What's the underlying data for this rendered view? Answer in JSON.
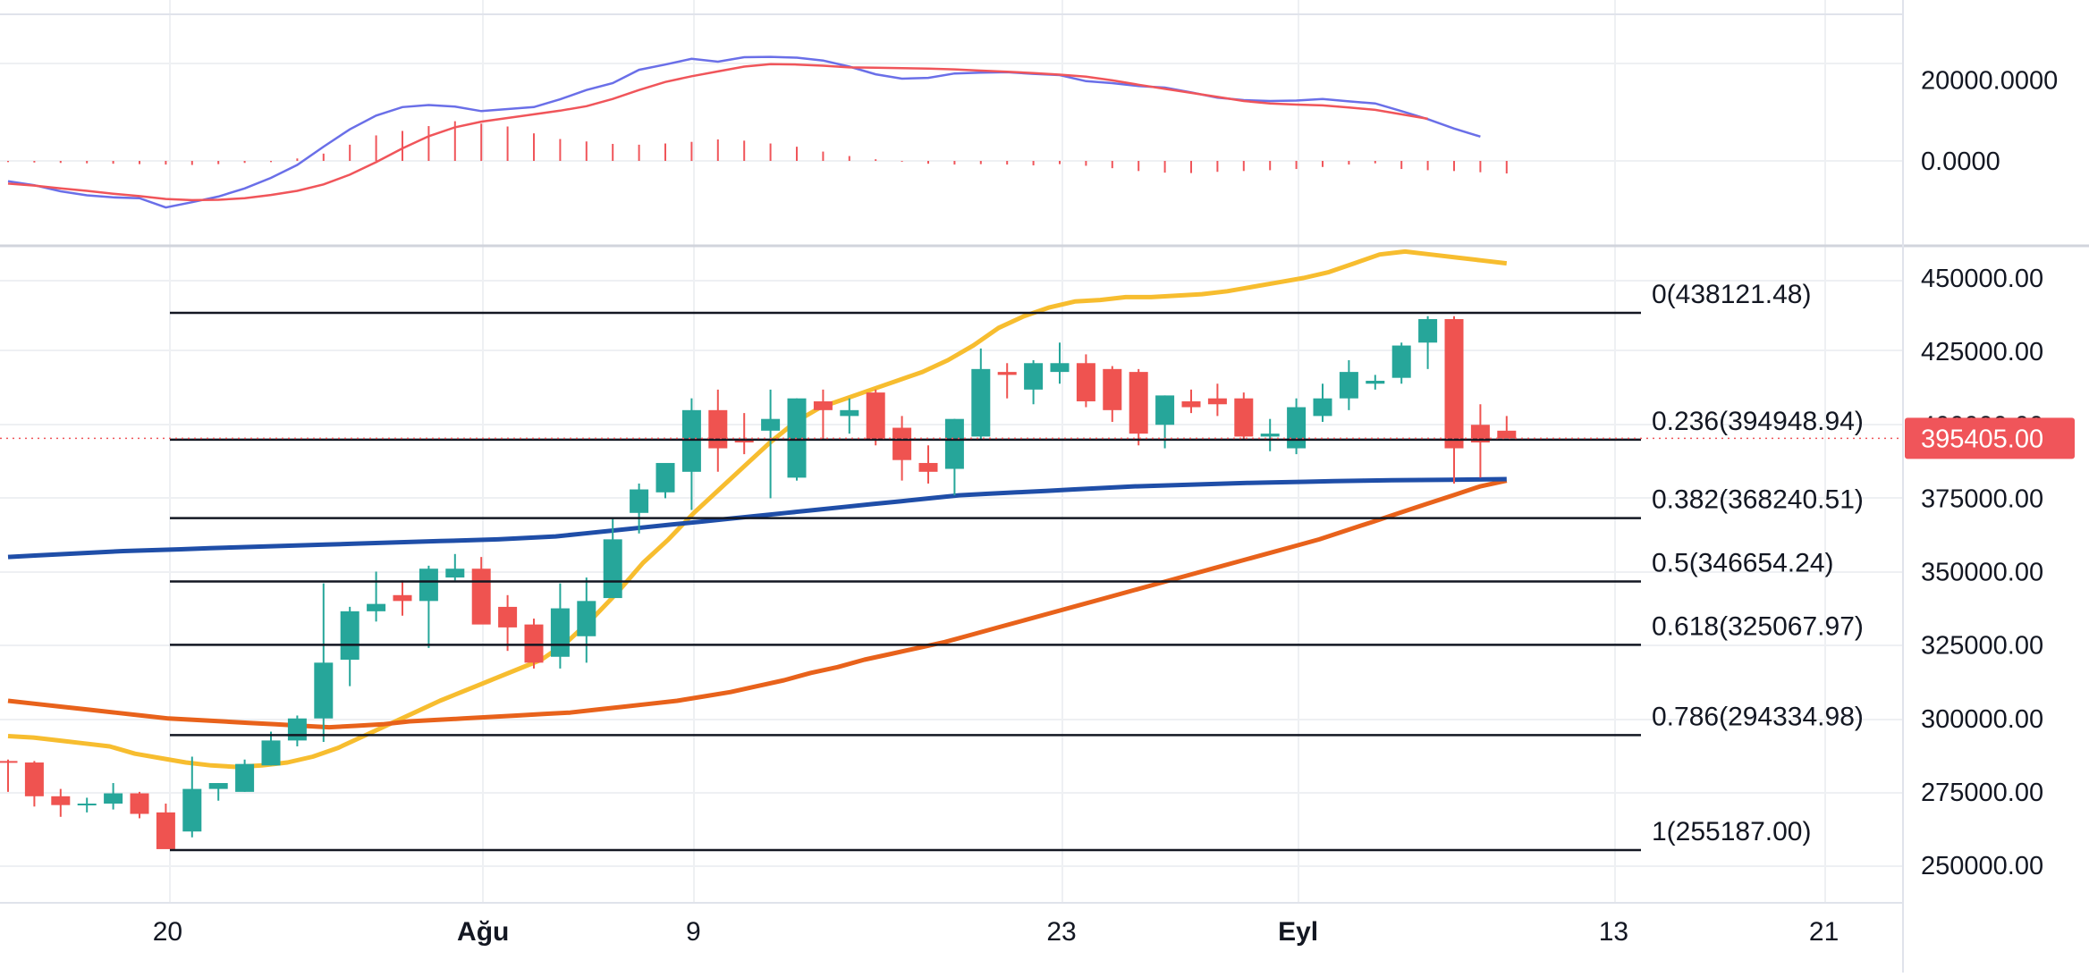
{
  "chart_data": [
    {
      "type": "line",
      "panel": "macd",
      "series": [
        {
          "role": "macd",
          "color": "#6a6fe8",
          "values": [
            -5000,
            -6000,
            -7500,
            -8500,
            -9000,
            -9200,
            -11500,
            -10200,
            -8800,
            -6800,
            -4200,
            -1000,
            3500,
            7800,
            11200,
            13300,
            13800,
            13400,
            12300,
            12800,
            13300,
            15200,
            17500,
            19200,
            22500,
            23800,
            25200,
            24500,
            25600,
            25700,
            25500,
            24800,
            23300,
            21400,
            20300,
            20500,
            21600,
            21800,
            21900,
            21500,
            21200,
            19700,
            19200,
            18500,
            18100,
            16900,
            15600,
            15000,
            14800,
            14900,
            15300,
            14700,
            14200,
            12300,
            10300,
            8000,
            6000
          ]
        },
        {
          "role": "signal",
          "color": "#f0555a",
          "values": [
            -5600,
            -6100,
            -6800,
            -7400,
            -8100,
            -8700,
            -9400,
            -9700,
            -9600,
            -9200,
            -8400,
            -7400,
            -5800,
            -3400,
            -300,
            3100,
            6100,
            8300,
            9700,
            10600,
            11500,
            12400,
            13500,
            15300,
            17500,
            19500,
            20900,
            22100,
            23300,
            23900,
            23800,
            23500,
            23100,
            23000,
            22900,
            22800,
            22600,
            22300,
            22000,
            21700,
            21300,
            20800,
            19900,
            18800,
            17800,
            16800,
            15800,
            14800,
            14200,
            13900,
            13700,
            13200,
            12600,
            11500,
            10400
          ]
        },
        {
          "role": "histogram",
          "color": "#f0555a",
          "values": [
            -300,
            -400,
            -500,
            -600,
            -700,
            -800,
            -900,
            -1000,
            -800,
            -500,
            -300,
            600,
            1800,
            4000,
            6300,
            7400,
            8600,
            9800,
            9200,
            8500,
            6800,
            5400,
            4800,
            4200,
            4000,
            4300,
            4700,
            5300,
            5000,
            4300,
            3500,
            2300,
            1200,
            400,
            -200,
            -700,
            -900,
            -800,
            -900,
            -1100,
            -800,
            -1200,
            -1800,
            -2500,
            -2900,
            -3000,
            -2700,
            -2500,
            -2300,
            -2000,
            -1500,
            -900,
            -600,
            -2000,
            -2300,
            -2500,
            -2800,
            -3100
          ]
        }
      ],
      "ticks": [
        "20000.0000",
        "0.0000"
      ],
      "ylim": [
        -14000,
        28000
      ]
    },
    {
      "type": "candlestick",
      "panel": "price",
      "up_color": "#26a69a",
      "down_color": "#ef5350",
      "candles": [
        [
          285500,
          286000,
          275000,
          285000
        ],
        [
          285000,
          285500,
          270000,
          273500
        ],
        [
          273500,
          276000,
          266500,
          270500
        ],
        [
          270500,
          273000,
          268000,
          271000
        ],
        [
          271000,
          278000,
          269000,
          274500
        ],
        [
          274500,
          275000,
          266000,
          267500
        ],
        [
          268000,
          271000,
          256000,
          255500
        ],
        [
          261500,
          287000,
          259500,
          276000
        ],
        [
          276000,
          278000,
          272000,
          278000
        ],
        [
          275000,
          286000,
          275000,
          284500
        ],
        [
          284000,
          295500,
          284000,
          292500
        ],
        [
          292500,
          301000,
          290500,
          300000
        ],
        [
          300000,
          346000,
          292000,
          319000
        ],
        [
          320000,
          338000,
          311000,
          336500
        ],
        [
          336500,
          350000,
          333000,
          339000
        ],
        [
          342000,
          347000,
          335000,
          340000
        ],
        [
          340000,
          352000,
          324000,
          351000
        ],
        [
          348000,
          356000,
          347000,
          351000
        ],
        [
          351000,
          355000,
          334000,
          332000
        ],
        [
          338000,
          342000,
          323000,
          331000
        ],
        [
          332000,
          334000,
          317000,
          319000
        ],
        [
          321000,
          346000,
          317000,
          337500
        ],
        [
          328000,
          348000,
          319000,
          340000
        ],
        [
          341000,
          368000,
          341000,
          361000
        ],
        [
          370000,
          380000,
          363000,
          378000
        ],
        [
          377000,
          386000,
          375000,
          387000
        ],
        [
          384000,
          409000,
          371000,
          405000
        ],
        [
          405000,
          412000,
          384000,
          392000
        ],
        [
          395000,
          404000,
          390000,
          394000
        ],
        [
          398000,
          412000,
          375000,
          402000
        ],
        [
          382000,
          409000,
          381000,
          409000
        ],
        [
          408000,
          412000,
          395000,
          405000
        ],
        [
          403000,
          409000,
          397000,
          405000
        ],
        [
          411000,
          412000,
          393000,
          395000
        ],
        [
          399000,
          403000,
          381000,
          388000
        ],
        [
          387000,
          393000,
          380000,
          384000
        ],
        [
          385000,
          402000,
          376000,
          402000
        ],
        [
          396000,
          426000,
          395000,
          419000
        ],
        [
          418000,
          421000,
          409000,
          417000
        ],
        [
          412000,
          422000,
          407000,
          421000
        ],
        [
          418000,
          428000,
          414000,
          421000
        ],
        [
          421000,
          424000,
          406000,
          408000
        ],
        [
          419000,
          420000,
          401000,
          405000
        ],
        [
          418000,
          419000,
          393000,
          397000
        ],
        [
          400000,
          410000,
          392000,
          410000
        ],
        [
          408000,
          412000,
          404000,
          406000
        ],
        [
          409000,
          414000,
          403000,
          407000
        ],
        [
          409000,
          411000,
          395000,
          396000
        ],
        [
          396000,
          402000,
          391000,
          397000
        ],
        [
          392000,
          409000,
          390000,
          406000
        ],
        [
          403000,
          414000,
          401000,
          409000
        ],
        [
          409000,
          422000,
          405000,
          418000
        ],
        [
          414000,
          417000,
          412000,
          415000
        ],
        [
          416000,
          428000,
          414000,
          427000
        ],
        [
          428000,
          437000,
          419000,
          436000
        ],
        [
          436000,
          437000,
          380000,
          392000
        ],
        [
          400000,
          407000,
          382000,
          394000
        ],
        [
          398000,
          403000,
          396000,
          395405
        ]
      ],
      "ma_series": [
        {
          "name": "",
          "color": "#f7bd2f",
          "values": [
            294000,
            293500,
            292500,
            291500,
            290500,
            288000,
            286500,
            285000,
            284000,
            283500,
            284000,
            285000,
            287000,
            290000,
            294000,
            298000,
            302000,
            306000,
            309500,
            313000,
            316500,
            320000,
            326000,
            334000,
            343000,
            353000,
            361000,
            370000,
            378000,
            386000,
            394000,
            401000,
            406000,
            409000,
            412000,
            415000,
            418000,
            422000,
            427000,
            433000,
            437000,
            440000,
            442000,
            442500,
            443500,
            443500,
            444000,
            444500,
            445500,
            447000,
            448500,
            450000,
            452000,
            455000,
            458000,
            459000,
            458000,
            457000,
            456000,
            455000
          ]
        },
        {
          "name": "",
          "color": "#e8621b",
          "values": [
            306000,
            305000,
            304000,
            303000,
            302000,
            301000,
            300000,
            299500,
            299000,
            298500,
            298000,
            297500,
            297000,
            297500,
            298000,
            299000,
            299500,
            300000,
            300500,
            301000,
            301500,
            302000,
            303000,
            304000,
            305000,
            306000,
            307500,
            309000,
            311000,
            313000,
            315500,
            317500,
            320000,
            322000,
            324000,
            326000,
            328500,
            331000,
            333500,
            336000,
            338500,
            341000,
            343500,
            346000,
            348500,
            351000,
            353500,
            356000,
            358500,
            361000,
            364000,
            367000,
            370000,
            373000,
            376000,
            379000,
            381000
          ]
        },
        {
          "name": "",
          "color": "#1f4ea8",
          "values": [
            355000,
            355500,
            356000,
            356500,
            357000,
            357300,
            357600,
            358000,
            358300,
            358600,
            358900,
            359200,
            359500,
            359800,
            360100,
            360400,
            360700,
            361000,
            361500,
            362000,
            363000,
            364000,
            365000,
            366000,
            367000,
            368000,
            369000,
            370000,
            371000,
            372000,
            373000,
            374000,
            375000,
            376000,
            376500,
            377000,
            377500,
            378000,
            378500,
            379000,
            379300,
            379600,
            379900,
            380200,
            380400,
            380600,
            380800,
            381000,
            381100,
            381200,
            381300,
            381400,
            381500
          ]
        }
      ],
      "fib_levels": [
        {
          "label": "0(438121.48)",
          "value": 438121.48
        },
        {
          "label": "0.236(394948.94)",
          "value": 394948.94
        },
        {
          "label": "0.382(368240.51)",
          "value": 368240.51
        },
        {
          "label": "0.5(346654.24)",
          "value": 346654.24
        },
        {
          "label": "0.618(325067.97)",
          "value": 325067.97
        },
        {
          "label": "0.786(294334.98)",
          "value": 294334.98
        },
        {
          "label": "1(255187.00)",
          "value": 255187.0
        }
      ],
      "ticks": [
        "450000.00",
        "425000.00",
        "375000.00",
        "350000.00",
        "325000.00",
        "300000.00",
        "275000.00",
        "250000.00"
      ],
      "last_price_label": "395405.00",
      "last_price_color": "#f0555a",
      "ylim": [
        237500,
        463000
      ]
    }
  ],
  "x_axis": {
    "labels": [
      {
        "text": "20",
        "bold": false,
        "value": 6
      },
      {
        "text": "Ağu",
        "bold": true,
        "value": 18
      },
      {
        "text": "9",
        "bold": false,
        "value": 26
      },
      {
        "text": "23",
        "bold": false,
        "value": 40
      },
      {
        "text": "Eyl",
        "bold": true,
        "value": 49
      },
      {
        "text": "13",
        "bold": false,
        "value": 61
      },
      {
        "text": "21",
        "bold": false,
        "value": 69
      }
    ]
  }
}
